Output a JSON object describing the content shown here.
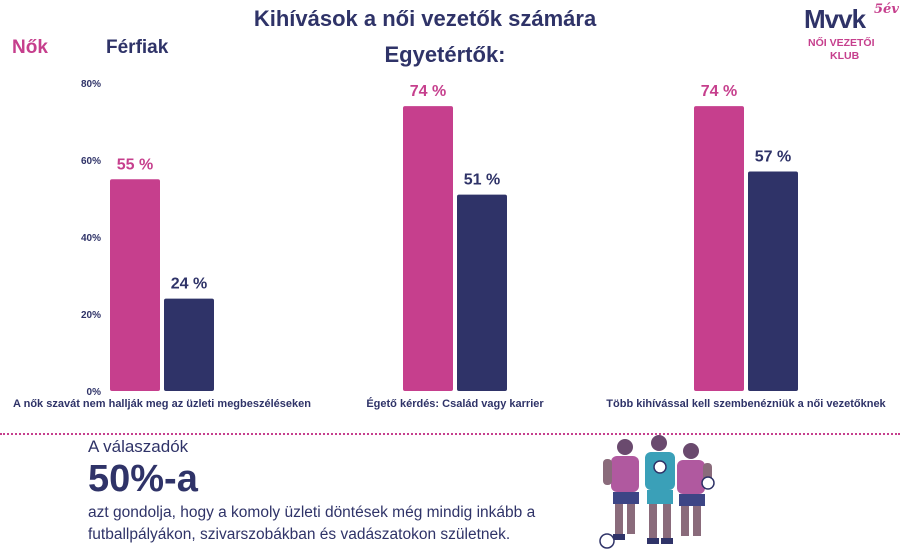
{
  "chart_data": {
    "type": "bar",
    "title": "Kihívások a női vezetők számára",
    "subtitle": "Egyetértők:",
    "categories": [
      "A nők szavát nem hallják meg az üzleti megbeszéléseken",
      "Égető kérdés: Család vagy karrier",
      "Több kihívással kell szembenézniük a női vezetőknek"
    ],
    "series": [
      {
        "name": "Nők",
        "values": [
          55,
          74,
          74
        ],
        "labels": [
          "55 %",
          "74 %",
          "74 %"
        ],
        "color": "#c63f8d"
      },
      {
        "name": "Férfiak",
        "values": [
          24,
          51,
          57
        ],
        "labels": [
          "24 %",
          "51 %",
          "57 %"
        ],
        "color": "#2f3368"
      }
    ],
    "yticks": [
      "0%",
      "20%",
      "40%",
      "60%",
      "80%"
    ],
    "ylim": [
      0,
      80
    ],
    "grid": false,
    "legend": "top-left"
  },
  "logo": {
    "main": "Mvvk",
    "badge": "5év",
    "line1": "NŐI VEZETŐI",
    "line2": "KLUB"
  },
  "footer": {
    "respondents": "A válaszadók",
    "big_number": "50%-a",
    "description": "azt gondolja, hogy a komoly üzleti döntések még mindig inkább a futballpályákon, szivarszobákban és vadászatokon születnek."
  }
}
